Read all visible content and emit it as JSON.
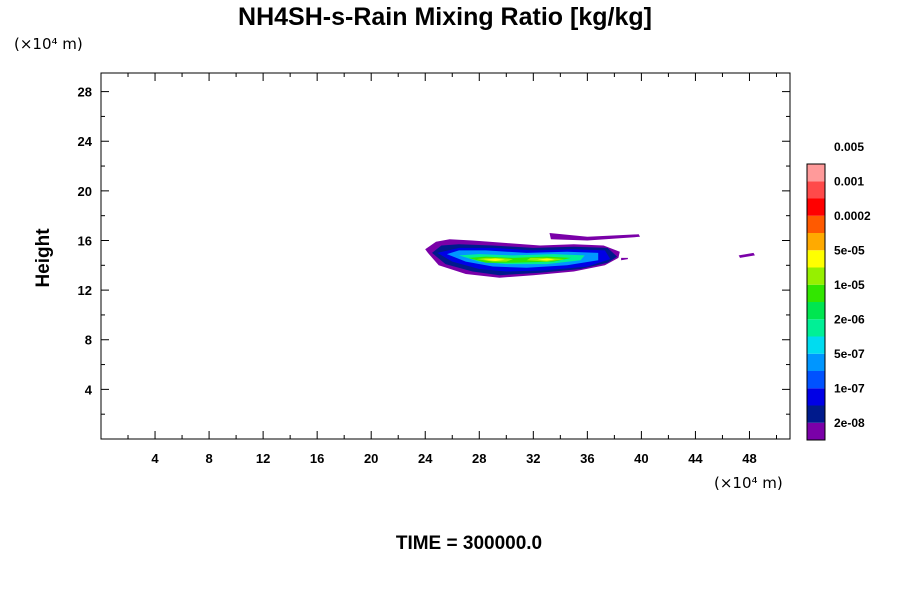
{
  "chart_data": {
    "type": "heatmap",
    "title": "NH4SH-s-Rain Mixing Ratio [kg/kg]",
    "xlabel": "",
    "ylabel": "Height",
    "x_unit_label": "(×10⁴ m)",
    "y_unit_label": "(×10⁴ m)",
    "xlim": [
      0,
      51
    ],
    "ylim": [
      0,
      29.5
    ],
    "x_ticks": [
      4,
      8,
      12,
      16,
      20,
      24,
      28,
      32,
      36,
      40,
      44,
      48
    ],
    "y_ticks": [
      4,
      8,
      12,
      16,
      20,
      24,
      28
    ],
    "colorbar": {
      "placement": "right",
      "colors": [
        "#7a00a8",
        "#001a8c",
        "#0000e6",
        "#0052ff",
        "#0096ff",
        "#00dcf0",
        "#00f096",
        "#00e650",
        "#32e600",
        "#96f000",
        "#ffff00",
        "#ffaa00",
        "#ff5a00",
        "#ff0000",
        "#ff4a4a",
        "#ff9a9a"
      ],
      "labels": [
        "2e-08",
        "1e-07",
        "5e-07",
        "2e-06",
        "1e-05",
        "5e-05",
        "0.0002",
        "0.001",
        "0.005"
      ]
    },
    "regions": [
      {
        "level": 0,
        "points": [
          [
            24.2,
            15.0
          ],
          [
            25.0,
            14.0
          ],
          [
            27.0,
            13.3
          ],
          [
            29.5,
            13.0
          ],
          [
            32.0,
            13.2
          ],
          [
            35.0,
            13.5
          ],
          [
            37.3,
            14.0
          ],
          [
            38.3,
            14.6
          ],
          [
            38.4,
            15.1
          ],
          [
            37.2,
            15.6
          ],
          [
            35.0,
            15.7
          ],
          [
            32.5,
            15.6
          ],
          [
            30.0,
            15.8
          ],
          [
            27.5,
            16.0
          ],
          [
            25.8,
            16.1
          ],
          [
            24.8,
            15.9
          ],
          [
            24.0,
            15.3
          ]
        ]
      },
      {
        "level": 0,
        "points": [
          [
            33.2,
            16.6
          ],
          [
            36.0,
            16.3
          ],
          [
            39.8,
            16.5
          ],
          [
            39.9,
            16.3
          ],
          [
            36.0,
            16.0
          ],
          [
            33.3,
            16.1
          ]
        ]
      },
      {
        "level": 0,
        "points": [
          [
            38.5,
            14.6
          ],
          [
            39.0,
            14.6
          ],
          [
            39.0,
            14.5
          ],
          [
            38.5,
            14.4
          ]
        ]
      },
      {
        "level": 0,
        "points": [
          [
            47.2,
            14.8
          ],
          [
            48.3,
            15.0
          ],
          [
            48.4,
            14.8
          ],
          [
            47.3,
            14.6
          ]
        ]
      },
      {
        "level": 1,
        "points": [
          [
            24.5,
            15.0
          ],
          [
            25.5,
            14.1
          ],
          [
            27.5,
            13.5
          ],
          [
            29.5,
            13.2
          ],
          [
            32.5,
            13.4
          ],
          [
            35.5,
            13.7
          ],
          [
            37.5,
            14.2
          ],
          [
            38.2,
            14.7
          ],
          [
            37.5,
            15.4
          ],
          [
            35.0,
            15.5
          ],
          [
            32.0,
            15.4
          ],
          [
            29.0,
            15.6
          ],
          [
            26.5,
            15.7
          ],
          [
            25.2,
            15.6
          ]
        ]
      },
      {
        "level": 2,
        "points": [
          [
            24.9,
            15.0
          ],
          [
            26.0,
            14.3
          ],
          [
            28.0,
            13.7
          ],
          [
            30.0,
            13.5
          ],
          [
            33.0,
            13.6
          ],
          [
            36.0,
            13.9
          ],
          [
            37.7,
            14.5
          ],
          [
            37.3,
            15.2
          ],
          [
            35.0,
            15.3
          ],
          [
            32.0,
            15.2
          ],
          [
            29.0,
            15.4
          ],
          [
            26.5,
            15.4
          ]
        ]
      },
      {
        "level": 4,
        "points": [
          [
            25.6,
            14.9
          ],
          [
            27.0,
            14.3
          ],
          [
            29.0,
            13.9
          ],
          [
            31.5,
            13.8
          ],
          [
            34.5,
            14.0
          ],
          [
            36.8,
            14.4
          ],
          [
            36.8,
            15.0
          ],
          [
            34.5,
            15.1
          ],
          [
            31.5,
            15.0
          ],
          [
            28.5,
            15.2
          ],
          [
            26.5,
            15.2
          ]
        ]
      },
      {
        "level": 6,
        "points": [
          [
            26.5,
            14.8
          ],
          [
            28.0,
            14.3
          ],
          [
            30.0,
            14.1
          ],
          [
            33.0,
            14.1
          ],
          [
            35.5,
            14.4
          ],
          [
            35.8,
            14.8
          ],
          [
            33.5,
            14.9
          ],
          [
            30.5,
            14.8
          ],
          [
            28.0,
            14.9
          ]
        ]
      },
      {
        "level": 8,
        "points": [
          [
            27.2,
            14.6
          ],
          [
            28.5,
            14.2
          ],
          [
            30.5,
            14.2
          ],
          [
            33.5,
            14.3
          ],
          [
            34.8,
            14.6
          ],
          [
            33.0,
            14.7
          ],
          [
            30.5,
            14.6
          ],
          [
            28.5,
            14.7
          ]
        ]
      },
      {
        "level": 9,
        "points": [
          [
            27.8,
            14.5
          ],
          [
            29.0,
            14.3
          ],
          [
            30.0,
            14.3
          ],
          [
            30.5,
            14.5
          ],
          [
            29.5,
            14.6
          ],
          [
            28.5,
            14.6
          ]
        ]
      },
      {
        "level": 9,
        "points": [
          [
            31.5,
            14.4
          ],
          [
            33.0,
            14.3
          ],
          [
            34.3,
            14.5
          ],
          [
            33.0,
            14.6
          ],
          [
            31.8,
            14.6
          ]
        ]
      },
      {
        "level": 10,
        "points": [
          [
            28.3,
            14.45
          ],
          [
            29.2,
            14.35
          ],
          [
            29.9,
            14.45
          ],
          [
            29.2,
            14.55
          ]
        ]
      },
      {
        "level": 10,
        "points": [
          [
            32.3,
            14.45
          ],
          [
            33.0,
            14.38
          ],
          [
            33.6,
            14.48
          ],
          [
            33.0,
            14.55
          ]
        ]
      }
    ]
  },
  "footer": {
    "time_label": "TIME = 300000.0"
  }
}
